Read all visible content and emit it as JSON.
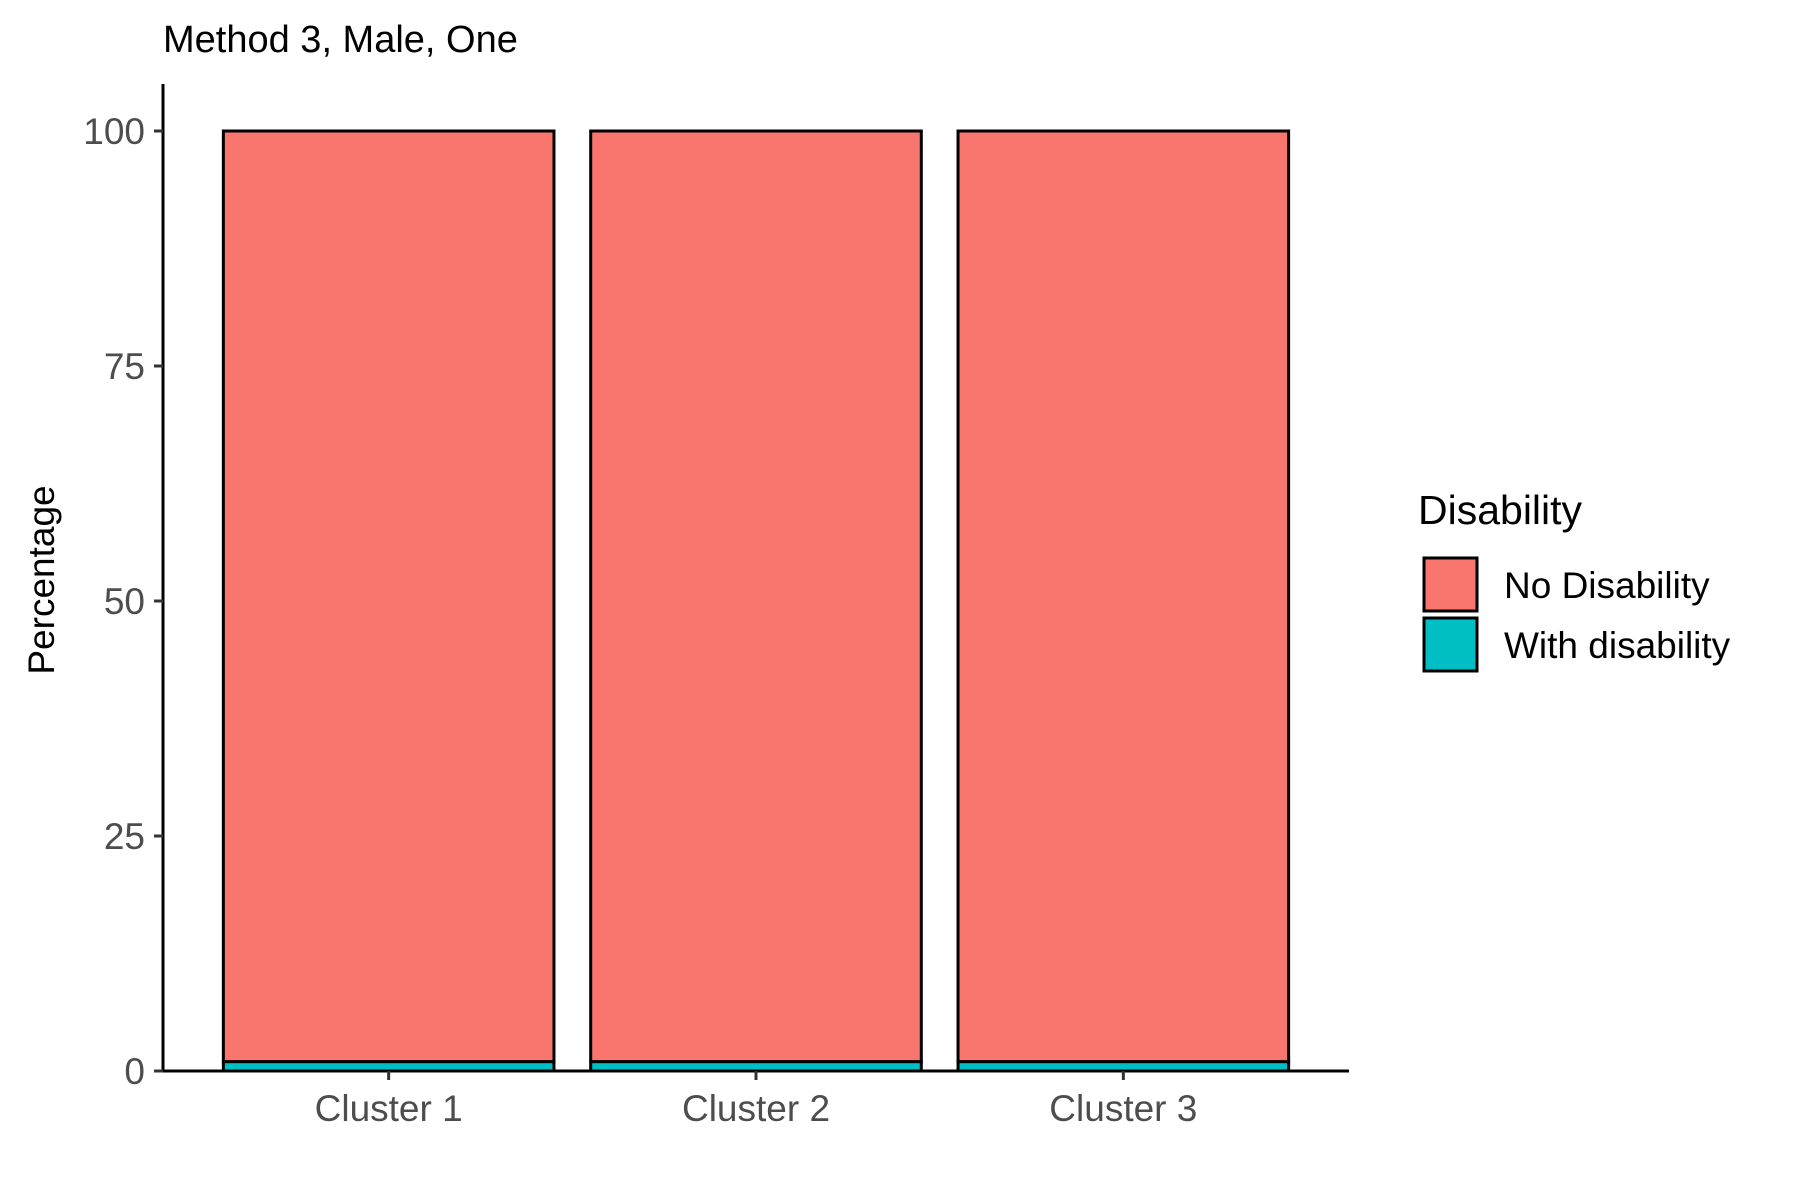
{
  "chart_data": {
    "type": "bar",
    "stacked": true,
    "title": "Method 3, Male, One",
    "xlabel": "",
    "ylabel": "Percentage",
    "ylim": [
      0,
      105
    ],
    "yticks": [
      0,
      25,
      50,
      75,
      100
    ],
    "ytick_labels": [
      "0",
      "25",
      "50",
      "75",
      "100"
    ],
    "categories": [
      "Cluster 1",
      "Cluster 2",
      "Cluster 3"
    ],
    "series": [
      {
        "name": "With disability",
        "values": [
          1,
          1,
          1
        ],
        "color": "#00BFC4"
      },
      {
        "name": "No Disability",
        "values": [
          99,
          99,
          99
        ],
        "color": "#F8766D"
      }
    ],
    "legend": {
      "title": "Disability",
      "placement": "right",
      "entries": [
        "No Disability",
        "With disability"
      ]
    },
    "grid": false
  }
}
